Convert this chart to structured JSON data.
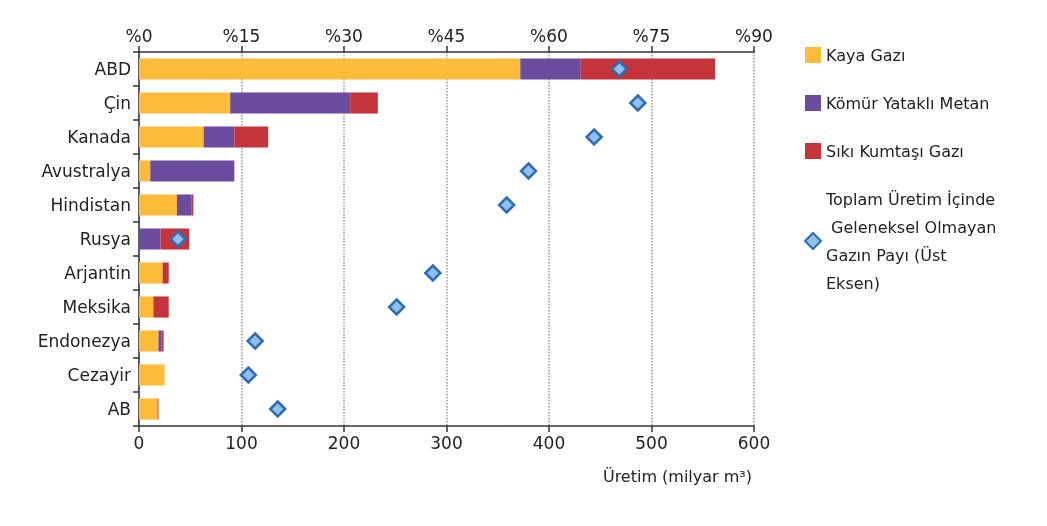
{
  "chart_data": {
    "type": "bar",
    "orientation": "horizontal",
    "stacked": true,
    "xlabel": "Üretim (milyar m³)",
    "categories": [
      "ABD",
      "Çin",
      "Kanada",
      "Avustralya",
      "Hindistan",
      "Rusya",
      "Arjantin",
      "Meksika",
      "Endonezya",
      "Cezayir",
      "AB"
    ],
    "series": [
      {
        "name": "Kaya Gazı",
        "color": "#fdbb3a",
        "values": [
          372,
          89,
          63,
          11,
          37,
          0,
          23,
          14,
          19,
          25,
          18
        ]
      },
      {
        "name": "Kömür Yataklı Metan",
        "color": "#6b4c9e",
        "values": [
          59,
          117,
          30,
          82,
          14,
          21,
          0,
          0,
          3,
          0,
          0
        ]
      },
      {
        "name": "Sıkı Kumtaşı Gazı",
        "color": "#c4343a",
        "values": [
          131,
          27,
          33,
          0,
          2,
          28,
          6,
          15,
          2,
          0,
          1
        ]
      },
      {
        "name": "Toplam Üretim İçinde Geleneksel Olmayan Gazın Payı (Üst Eksen)",
        "type": "scatter",
        "axis": "x2",
        "color": "#8dc0ea",
        "values": [
          70.3,
          73,
          66.6,
          57,
          53.8,
          5.7,
          43,
          37.7,
          17,
          16,
          20.3
        ]
      }
    ],
    "xlim": [
      0,
      600
    ],
    "xticks": [
      0,
      100,
      200,
      300,
      400,
      500,
      600
    ],
    "x2lim": [
      0,
      90
    ],
    "x2ticks": [
      {
        "value": 0,
        "label": "%0"
      },
      {
        "value": 15,
        "label": "%15"
      },
      {
        "value": 30,
        "label": "%30"
      },
      {
        "value": 45,
        "label": "%45"
      },
      {
        "value": 60,
        "label": "%60"
      },
      {
        "value": 75,
        "label": "%75"
      },
      {
        "value": 90,
        "label": "%90"
      }
    ],
    "grid": "x",
    "marker": "diamond",
    "legend": "right"
  }
}
